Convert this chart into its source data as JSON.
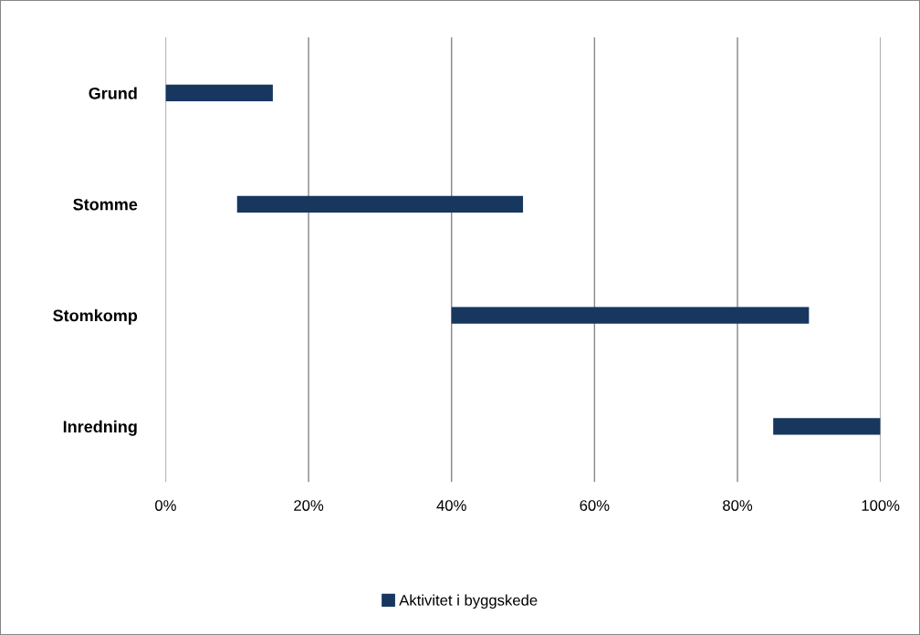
{
  "chart_data": {
    "type": "bar",
    "orientation": "horizontal",
    "categories": [
      "Grund",
      "Stomme",
      "Stomkomp",
      "Inredning"
    ],
    "series": [
      {
        "name": "Aktivitet i byggskede",
        "color": "#17375e",
        "base": [
          0,
          10,
          40,
          85
        ],
        "values": [
          15,
          40,
          50,
          15
        ]
      }
    ],
    "xlim": [
      0,
      100
    ],
    "xticks": [
      {
        "value": 0,
        "label": "0%"
      },
      {
        "value": 20,
        "label": "20%"
      },
      {
        "value": 40,
        "label": "40%"
      },
      {
        "value": 60,
        "label": "60%"
      },
      {
        "value": 80,
        "label": "80%"
      },
      {
        "value": 100,
        "label": "100%"
      }
    ],
    "grid": "x",
    "legend": "bottom"
  }
}
